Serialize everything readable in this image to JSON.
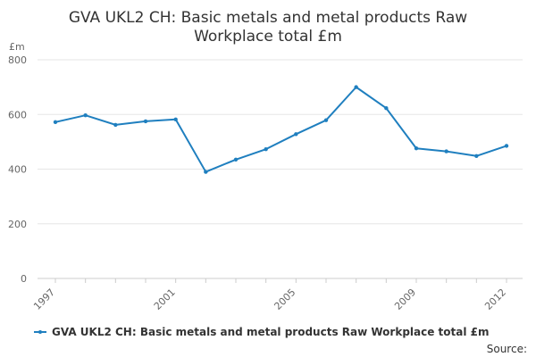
{
  "chart_data": {
    "type": "line",
    "title_line1": "GVA UKL2 CH: Basic metals and metal products Raw",
    "title_line2": "Workplace total £m",
    "y_unit": "£m",
    "x": [
      1997,
      1998,
      1999,
      2000,
      2001,
      2002,
      2003,
      2004,
      2005,
      2006,
      2007,
      2008,
      2009,
      2010,
      2011,
      2012
    ],
    "x_tick_labels": [
      "1997",
      "2001",
      "2005",
      "2009",
      "2012"
    ],
    "y_ticks": [
      "0",
      "200",
      "400",
      "600",
      "800"
    ],
    "ylim": [
      0,
      800
    ],
    "grid": true,
    "legend_position": "bottom",
    "series": [
      {
        "name": "GVA UKL2 CH: Basic metals and metal products Raw Workplace total £m",
        "color": "#1f7fbf",
        "values": [
          572,
          597,
          562,
          575,
          582,
          390,
          435,
          473,
          528,
          579,
          700,
          623,
          476,
          465,
          448,
          485
        ]
      }
    ],
    "source_label": "Source:"
  }
}
